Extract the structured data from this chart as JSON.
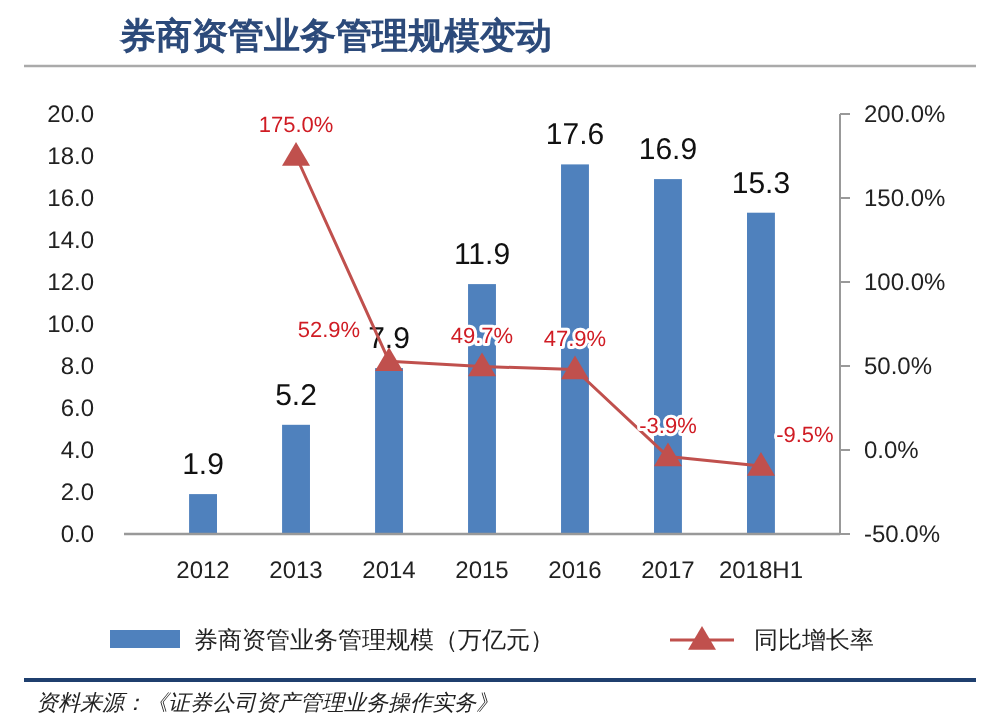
{
  "chart_data": {
    "type": "bar",
    "title": "券商资管业务管理规模变动",
    "categories": [
      "2012",
      "2013",
      "2014",
      "2015",
      "2016",
      "2017",
      "2018H1"
    ],
    "series": [
      {
        "name": "券商资管业务管理规模（万亿元）",
        "color": "#4f81bd",
        "values": [
          1.9,
          5.2,
          7.9,
          11.9,
          17.6,
          16.9,
          15.3
        ],
        "value_labels": [
          "1.9",
          "5.2",
          "7.9",
          "11.9",
          "17.6",
          "16.9",
          "15.3"
        ]
      },
      {
        "name": "同比增长率",
        "type": "line",
        "axis": "y2",
        "color": "#c0504d",
        "marker": "triangle",
        "values": [
          null,
          175.0,
          52.9,
          49.7,
          47.9,
          -3.9,
          -9.5
        ],
        "value_labels": [
          null,
          "175.0%",
          "52.9%",
          "49.7%",
          "47.9%",
          "-3.9%",
          "-9.5%"
        ]
      }
    ],
    "ylim": [
      0,
      20
    ],
    "yticks": [
      {
        "value": 0,
        "label": "0.0"
      },
      {
        "value": 2,
        "label": "2.0"
      },
      {
        "value": 4,
        "label": "4.0"
      },
      {
        "value": 6,
        "label": "6.0"
      },
      {
        "value": 8,
        "label": "8.0"
      },
      {
        "value": 10,
        "label": "10.0"
      },
      {
        "value": 12,
        "label": "12.0"
      },
      {
        "value": 14,
        "label": "14.0"
      },
      {
        "value": 16,
        "label": "16.0"
      },
      {
        "value": 18,
        "label": "18.0"
      },
      {
        "value": 20,
        "label": "20.0"
      }
    ],
    "y2lim": [
      -50,
      200
    ],
    "y2ticks": [
      {
        "value": -50,
        "label": "-50.0%"
      },
      {
        "value": 0,
        "label": "0.0%"
      },
      {
        "value": 50,
        "label": "50.0%"
      },
      {
        "value": 100,
        "label": "100.0%"
      },
      {
        "value": 150,
        "label": "150.0%"
      },
      {
        "value": 200,
        "label": "200.0%"
      }
    ],
    "legend": "bottom",
    "annotations": [
      "资料来源：《证券公司资产管理业务操作实务》"
    ]
  }
}
